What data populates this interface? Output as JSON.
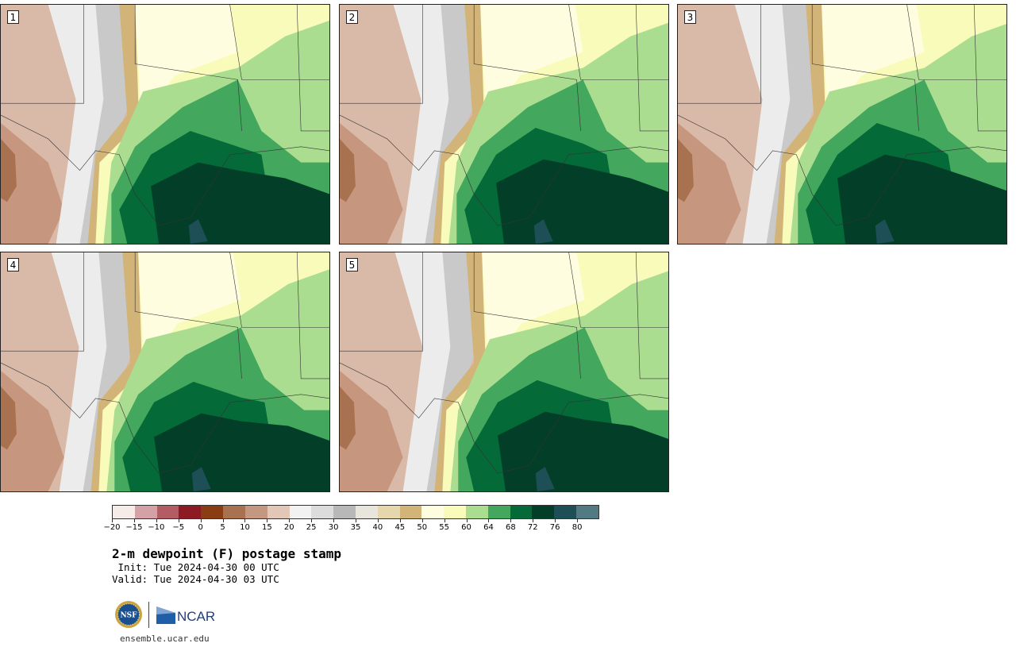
{
  "title": "2-m dewpoint (F) postage stamp",
  "init_text": " Init: Tue 2024-04-30 00 UTC",
  "valid_text": "Valid: Tue 2024-04-30 03 UTC",
  "site": "ensemble.ucar.edu",
  "logos": {
    "nsf": "nsf-logo",
    "ncar_text": "NCAR",
    "nsf_text": "NSF"
  },
  "panels": [
    {
      "label": "1"
    },
    {
      "label": "2"
    },
    {
      "label": "3"
    },
    {
      "label": "4"
    },
    {
      "label": "5"
    }
  ],
  "colorbar": {
    "ticks": [
      "-20",
      "-15",
      "-10",
      "-5",
      "0",
      "5",
      "10",
      "15",
      "20",
      "25",
      "30",
      "35",
      "40",
      "45",
      "50",
      "55",
      "60",
      "64",
      "68",
      "72",
      "76",
      "80"
    ],
    "colors": [
      "#f5ecea",
      "#d4a2a6",
      "#b35c63",
      "#8e1a24",
      "#8a3d12",
      "#a8714f",
      "#c49880",
      "#e2c6b6",
      "#f2f2f2",
      "#dcdcdc",
      "#b8b8b8",
      "#e8e6dc",
      "#e6d6ac",
      "#d2b478",
      "#fffde0",
      "#f9fbbb",
      "#aadd8f",
      "#43a85d",
      "#046a38",
      "#033f28",
      "#1f4f56",
      "#517a82"
    ]
  },
  "map_colors": {
    "dry_brown": "#d9b9a7",
    "mid_brown": "#c6977e",
    "dark_brown": "#a8714f",
    "light_gray": "#ececec",
    "mid_gray": "#c9c9c9",
    "tan": "#d2b478",
    "light_yellow": "#fffde0",
    "yellow": "#f9fbbb",
    "light_green": "#aadd8f",
    "green": "#43a85d",
    "dark_green": "#046a38",
    "darkest_green": "#033f28",
    "teal": "#1f4f56"
  }
}
